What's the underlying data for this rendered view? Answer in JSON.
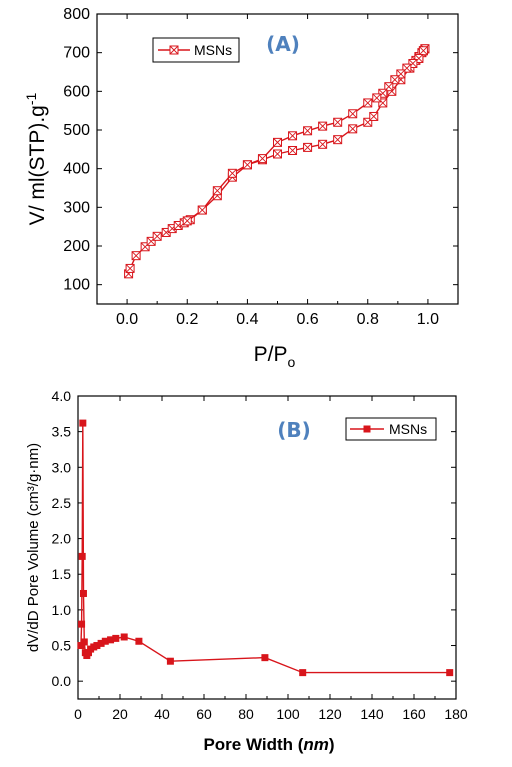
{
  "colors": {
    "series": "#d8151b",
    "panel_label": "#4f81bd",
    "axis": "#000000"
  },
  "chart_data": [
    {
      "panel_label": "(A)",
      "type": "line",
      "marker": "square-x-open",
      "xlabel_main": "P/P",
      "xlabel_sub": "o",
      "ylabel_main": "V/ ml(STP).g",
      "ylabel_sup": "-1",
      "xlim": [
        -0.1,
        1.1
      ],
      "ylim": [
        50,
        800
      ],
      "xticks": [
        0.0,
        0.2,
        0.4,
        0.6,
        0.8,
        1.0
      ],
      "xtick_labels": [
        "0.0",
        "0.2",
        "0.4",
        "0.6",
        "0.8",
        "1.0"
      ],
      "yticks": [
        100,
        200,
        300,
        400,
        500,
        600,
        700,
        800
      ],
      "ytick_labels": [
        "100",
        "200",
        "300",
        "400",
        "500",
        "600",
        "700",
        "800"
      ],
      "legend": {
        "label": "MSNs",
        "position": "top-left"
      },
      "grid": false,
      "series": [
        {
          "name": "MSNs",
          "branch": "adsorption",
          "x": [
            0.005,
            0.01,
            0.03,
            0.06,
            0.08,
            0.1,
            0.13,
            0.15,
            0.17,
            0.19,
            0.21,
            0.25,
            0.3,
            0.35,
            0.4,
            0.45,
            0.5,
            0.55,
            0.6,
            0.65,
            0.7,
            0.75,
            0.8,
            0.82,
            0.85,
            0.88,
            0.91,
            0.94,
            0.96,
            0.97,
            0.98,
            0.985,
            0.99
          ],
          "y": [
            128,
            142,
            175,
            198,
            212,
            225,
            235,
            245,
            253,
            260,
            268,
            293,
            330,
            378,
            410,
            423,
            438,
            447,
            455,
            463,
            475,
            503,
            520,
            535,
            570,
            600,
            630,
            660,
            680,
            690,
            700,
            705,
            710
          ]
        },
        {
          "name": "MSNs",
          "branch": "desorption",
          "x": [
            0.99,
            0.985,
            0.97,
            0.95,
            0.93,
            0.91,
            0.89,
            0.87,
            0.85,
            0.83,
            0.8,
            0.75,
            0.7,
            0.65,
            0.6,
            0.55,
            0.5,
            0.45,
            0.4,
            0.35,
            0.3,
            0.25,
            0.2
          ],
          "y": [
            710,
            705,
            685,
            672,
            660,
            645,
            630,
            612,
            595,
            583,
            570,
            542,
            520,
            510,
            498,
            485,
            468,
            426,
            410,
            388,
            343,
            293,
            265
          ]
        }
      ]
    },
    {
      "panel_label": "(B)",
      "type": "line",
      "marker": "square-filled",
      "xlabel_main": "Pore Width (",
      "xlabel_italic": "nm",
      "xlabel_end": ")",
      "ylabel": "dV/dD Pore Volume (cm³/g·nm)",
      "xlim": [
        0,
        180
      ],
      "ylim": [
        -0.25,
        4.0
      ],
      "xticks": [
        0,
        20,
        40,
        60,
        80,
        100,
        120,
        140,
        160,
        180
      ],
      "xtick_labels": [
        "0",
        "20",
        "40",
        "60",
        "80",
        "100",
        "120",
        "140",
        "160",
        "180"
      ],
      "yticks": [
        0.0,
        0.5,
        1.0,
        1.5,
        2.0,
        2.5,
        3.0,
        3.5,
        4.0
      ],
      "ytick_labels": [
        "0.0",
        "0.5",
        "1.0",
        "1.5",
        "2.0",
        "2.5",
        "3.0",
        "3.5",
        "4.0"
      ],
      "legend": {
        "label": "MSNs",
        "position": "top-right"
      },
      "grid": false,
      "series": [
        {
          "name": "MSNs",
          "x": [
            1.4,
            1.7,
            2.0,
            2.3,
            2.6,
            3.0,
            3.5,
            4.2,
            5.0,
            6.0,
            7.5,
            9.0,
            11.0,
            13.0,
            15.5,
            18.0,
            22.0,
            29.0,
            44.0,
            89.0,
            107.0,
            177.0
          ],
          "y": [
            0.5,
            0.8,
            1.75,
            3.62,
            1.23,
            0.55,
            0.4,
            0.36,
            0.4,
            0.45,
            0.48,
            0.5,
            0.53,
            0.56,
            0.58,
            0.6,
            0.62,
            0.56,
            0.28,
            0.33,
            0.12,
            0.12
          ]
        }
      ]
    }
  ]
}
